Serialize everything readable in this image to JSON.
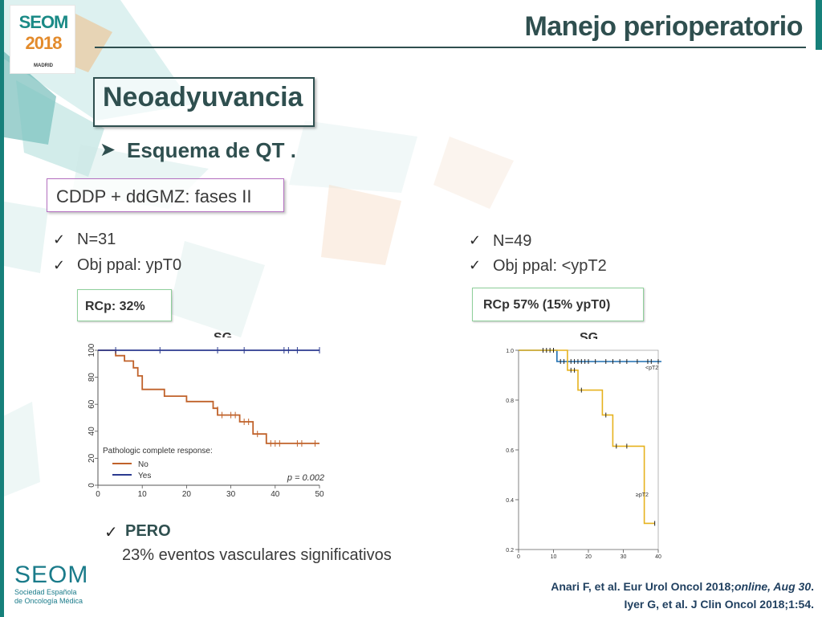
{
  "header": {
    "logo_seom": "SEOM",
    "logo_year": "2018",
    "logo_city": "MADRID",
    "title": "Manejo perioperatorio"
  },
  "section": {
    "title": "Neoadyuvancia",
    "bullet_head": "Esquema de QT .",
    "scheme": "CDDP + ddGMZ: fases II"
  },
  "left_study": {
    "n": "N=31",
    "obj": "Obj ppal: ypT0",
    "rcp": "RCp: 32%",
    "sg_label": "SG"
  },
  "right_study": {
    "n": "N=49",
    "obj": "Obj ppal: <ypT2",
    "rcp": "RCp 57% (15% ypT0)",
    "sg_label": "SG"
  },
  "pero": {
    "head": "PERO",
    "text": "23% eventos vasculares significativos"
  },
  "footer": {
    "seom": "SEOM",
    "society_line1": "Sociedad Española",
    "society_line2": "de Oncología Médica",
    "ref1_plain": "Anari F, et al. Eur Urol Oncol 2018;",
    "ref1_italic": "online, Aug 30",
    "ref1_end": ".",
    "ref2": "Iyer G, et al. J Clin Oncol 2018;1:54."
  },
  "colors": {
    "accent_teal": "#16807a",
    "heading": "#2f4f4f",
    "km_no": "#c0622a",
    "km_yes": "#2b3a8f",
    "km_lt_pt2": "#1f6fb0",
    "km_ge_pt2": "#e6b21e"
  },
  "icons": [
    "check-icon",
    "arrow-bullet-icon"
  ],
  "chart_data": [
    {
      "type": "line",
      "title": "",
      "xlabel": "",
      "ylabel": "",
      "xlim": [
        0,
        50
      ],
      "ylim": [
        0,
        100
      ],
      "x_ticks": [
        "0",
        "10",
        "20",
        "30",
        "40",
        "50"
      ],
      "y_ticks": [
        "0",
        "20",
        "40",
        "60",
        "80",
        "100"
      ],
      "legend_title": "Pathologic complete response:",
      "annotation": "p = 0.002",
      "series": [
        {
          "name": "No",
          "color": "#c0622a",
          "steps": [
            [
              0,
              100
            ],
            [
              4,
              100
            ],
            [
              4,
              96
            ],
            [
              6,
              96
            ],
            [
              6,
              92
            ],
            [
              8,
              92
            ],
            [
              8,
              87
            ],
            [
              9,
              87
            ],
            [
              9,
              81
            ],
            [
              10,
              81
            ],
            [
              10,
              71
            ],
            [
              15,
              71
            ],
            [
              15,
              66
            ],
            [
              20,
              66
            ],
            [
              20,
              62
            ],
            [
              26,
              62
            ],
            [
              26,
              57
            ],
            [
              27,
              57
            ],
            [
              27,
              52
            ],
            [
              32,
              52
            ],
            [
              32,
              47
            ],
            [
              35,
              47
            ],
            [
              35,
              38
            ],
            [
              38,
              38
            ],
            [
              38,
              31
            ],
            [
              50,
              31
            ]
          ],
          "censors": [
            [
              27,
              56
            ],
            [
              28,
              52
            ],
            [
              30,
              52
            ],
            [
              31,
              52
            ],
            [
              33,
              47
            ],
            [
              34,
              47
            ],
            [
              36,
              38
            ],
            [
              39,
              31
            ],
            [
              40,
              31
            ],
            [
              41,
              31
            ],
            [
              45,
              31
            ],
            [
              46,
              31
            ],
            [
              49,
              31
            ]
          ]
        },
        {
          "name": "Yes",
          "color": "#2b3a8f",
          "steps": [
            [
              0,
              100
            ],
            [
              50,
              100
            ]
          ],
          "censors": [
            [
              4,
              100
            ],
            [
              14,
              100
            ],
            [
              27,
              100
            ],
            [
              33,
              100
            ],
            [
              42,
              100
            ],
            [
              43,
              100
            ],
            [
              45,
              100
            ],
            [
              50,
              100
            ]
          ]
        }
      ]
    },
    {
      "type": "line",
      "title": "",
      "xlabel": "",
      "ylabel": "",
      "xlim": [
        0,
        40
      ],
      "ylim": [
        0.2,
        1.0
      ],
      "x_ticks": [
        "0",
        "10",
        "20",
        "30",
        "40"
      ],
      "y_ticks": [
        "0.2",
        "0.4",
        "0.6",
        "0.8",
        "1.0"
      ],
      "series": [
        {
          "name": "<pT2",
          "color": "#1f6fb0",
          "steps": [
            [
              0,
              1.0
            ],
            [
              11,
              1.0
            ],
            [
              11,
              0.955
            ],
            [
              42,
              0.955
            ]
          ],
          "censors": [
            [
              12,
              0.955
            ],
            [
              13,
              0.955
            ],
            [
              14,
              0.955
            ],
            [
              15,
              0.955
            ],
            [
              16,
              0.955
            ],
            [
              17,
              0.955
            ],
            [
              18,
              0.955
            ],
            [
              19,
              0.955
            ],
            [
              20,
              0.955
            ],
            [
              22,
              0.955
            ],
            [
              25,
              0.955
            ],
            [
              27,
              0.955
            ],
            [
              29,
              0.955
            ],
            [
              31,
              0.955
            ],
            [
              34,
              0.955
            ],
            [
              37,
              0.955
            ],
            [
              38,
              0.955
            ],
            [
              40,
              0.955
            ]
          ]
        },
        {
          "name": "≥pT2",
          "color": "#e6b21e",
          "steps": [
            [
              0,
              1.0
            ],
            [
              14,
              1.0
            ],
            [
              14,
              0.92
            ],
            [
              17,
              0.92
            ],
            [
              17,
              0.84
            ],
            [
              24,
              0.84
            ],
            [
              24,
              0.74
            ],
            [
              27,
              0.74
            ],
            [
              27,
              0.615
            ],
            [
              36,
              0.615
            ],
            [
              36,
              0.305
            ],
            [
              39,
              0.305
            ]
          ],
          "censors": [
            [
              7,
              1.0
            ],
            [
              8,
              1.0
            ],
            [
              9,
              1.0
            ],
            [
              10,
              1.0
            ],
            [
              15,
              0.92
            ],
            [
              16,
              0.92
            ],
            [
              18,
              0.84
            ],
            [
              25,
              0.74
            ],
            [
              28,
              0.615
            ],
            [
              31,
              0.615
            ],
            [
              39,
              0.305
            ]
          ]
        }
      ]
    }
  ]
}
